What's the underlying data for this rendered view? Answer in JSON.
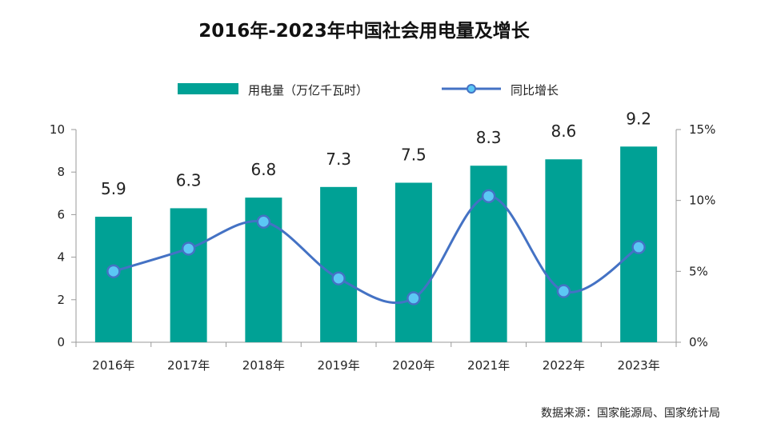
{
  "chart_data": {
    "type": "bar",
    "title": "2016年-2023年中国社会用电量及增长",
    "categories": [
      "2016年",
      "2017年",
      "2018年",
      "2019年",
      "2020年",
      "2021年",
      "2022年",
      "2023年"
    ],
    "series": [
      {
        "name": "用电量（万亿千瓦时）",
        "type": "bar",
        "axis": "left",
        "values": [
          5.9,
          6.3,
          6.8,
          7.3,
          7.5,
          8.3,
          8.6,
          9.2
        ],
        "data_labels": [
          "5.9",
          "6.3",
          "6.8",
          "7.3",
          "7.5",
          "8.3",
          "8.6",
          "9.2"
        ],
        "color": "#00A195"
      },
      {
        "name": "同比增长",
        "type": "line",
        "axis": "right",
        "values": [
          5.0,
          6.6,
          8.5,
          4.5,
          3.1,
          10.3,
          3.6,
          6.7
        ],
        "color": "#4472C4",
        "marker_color": "#5BC8F5"
      }
    ],
    "y_left": {
      "ylim": [
        0,
        10
      ],
      "ticks": [
        0,
        2,
        4,
        6,
        8,
        10
      ],
      "tick_labels": [
        "0",
        "2",
        "4",
        "6",
        "8",
        "10"
      ]
    },
    "y_right": {
      "ylim": [
        0,
        15
      ],
      "ticks": [
        0,
        5,
        10,
        15
      ],
      "tick_labels": [
        "0%",
        "5%",
        "10%",
        "15%"
      ]
    },
    "legend_position": "top-center",
    "grid": false
  },
  "source_note": "数据来源：国家能源局、国家统计局"
}
